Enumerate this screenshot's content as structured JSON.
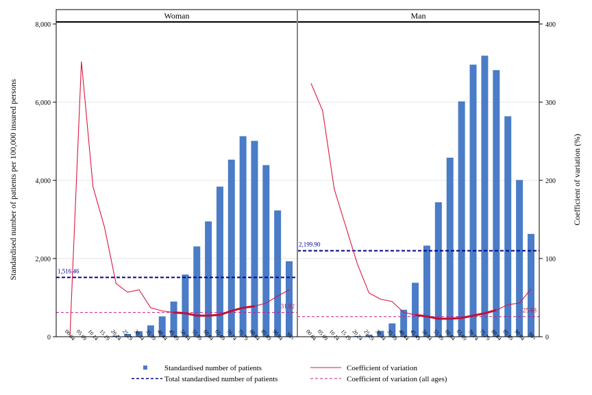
{
  "chart_data": {
    "type": "bar",
    "panels": [
      "Woman",
      "Man"
    ],
    "categories": [
      "00-04",
      "05-09",
      "10-14",
      "15-19",
      "20-24",
      "25-29",
      "30-34",
      "35-39",
      "40-44",
      "45-49",
      "50-54",
      "55-59",
      "60-64",
      "65-69",
      "70-74",
      "75-79",
      "80-84",
      "85-89",
      "90-94",
      "95+"
    ],
    "ylabel_left": "Standardised number of patients per 100,000 insured persons",
    "ylabel_right": "Coefficient of variation (%)",
    "ylim_left": [
      0,
      8000
    ],
    "ylim_right": [
      0,
      400
    ],
    "yticks_left": [
      "0",
      "2,000",
      "4,000",
      "6,000",
      "8,000"
    ],
    "yticks_right": [
      "0",
      "100",
      "200",
      "300",
      "400"
    ],
    "series": [
      {
        "name": "Standardised number of patients",
        "axis": "left",
        "panel": "Woman",
        "values": [
          0,
          0,
          0,
          0,
          30,
          70,
          140,
          290,
          520,
          900,
          1590,
          2310,
          2950,
          3840,
          4530,
          5130,
          5010,
          4390,
          3230,
          1930
        ]
      },
      {
        "name": "Standardised number of patients",
        "axis": "left",
        "panel": "Man",
        "values": [
          0,
          0,
          0,
          0,
          20,
          50,
          150,
          340,
          690,
          1380,
          2330,
          3440,
          4580,
          6020,
          6960,
          7190,
          6820,
          5640,
          4010,
          2630
        ]
      },
      {
        "name": "Coefficient of variation",
        "axis": "right",
        "panel": "Woman",
        "values": [
          0,
          352,
          192,
          140,
          68,
          57,
          60,
          37,
          33,
          31,
          30,
          27,
          27,
          28,
          33,
          37,
          39,
          43,
          52,
          60
        ]
      },
      {
        "name": "Coefficient of variation",
        "axis": "right",
        "panel": "Man",
        "values": [
          324,
          289,
          189,
          141,
          93,
          56,
          48,
          45,
          31,
          28,
          26,
          23,
          23,
          24,
          27,
          30,
          34,
          41,
          43,
          61
        ]
      }
    ],
    "reference_lines": [
      {
        "name": "Total standardised number of patients",
        "panel": "Woman",
        "axis": "left",
        "value": 1516.46,
        "label": "1,516.46"
      },
      {
        "name": "Total standardised number of patients",
        "panel": "Man",
        "axis": "left",
        "value": 2199.9,
        "label": "2,199.90"
      },
      {
        "name": "Coefficient of variation (all ages)",
        "panel": "Woman",
        "axis": "right",
        "value": 31.02,
        "label": "31.02"
      },
      {
        "name": "Coefficient of variation (all ages)",
        "panel": "Man",
        "axis": "right",
        "value": 25.68,
        "label": "25.68"
      }
    ],
    "legend": {
      "placement": "bottom",
      "items": [
        {
          "label": "Standardised number of patients",
          "marker": "square"
        },
        {
          "label": "Coefficient of variation",
          "marker": "line"
        },
        {
          "label": "Total standardised number of patients",
          "marker": "dashed-line"
        },
        {
          "label": "Coefficient of variation (all ages)",
          "marker": "dashed-line"
        }
      ]
    },
    "colors": {
      "bar": "#4a7cc7",
      "cv_line": "#dc143c",
      "cv_highlight": "#c0103a",
      "total_line": "#00008b",
      "cv_all_line": "#c71585",
      "grid": "#e6e6e6",
      "frame": "#000000",
      "divider": "#888888"
    }
  }
}
